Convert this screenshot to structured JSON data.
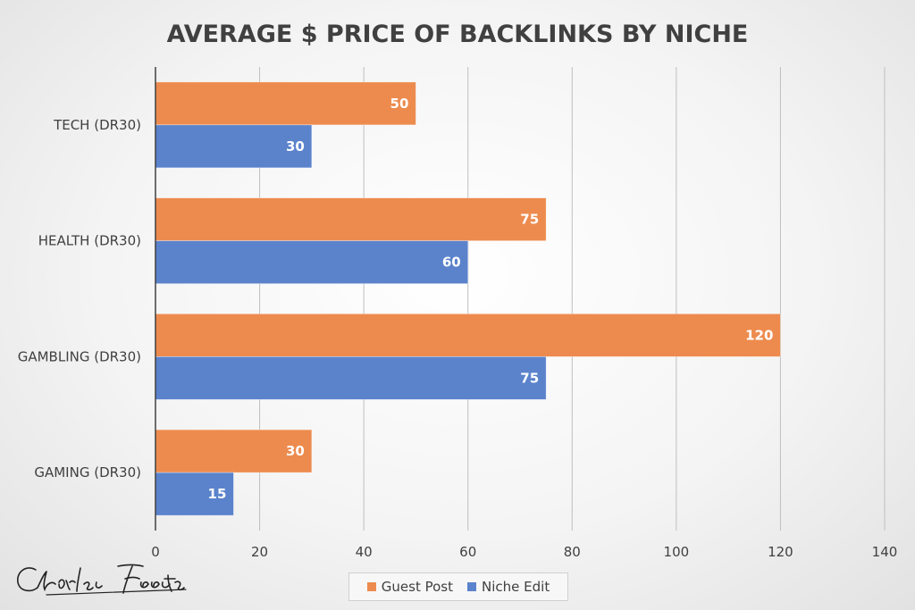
{
  "chart_data": {
    "type": "bar",
    "orientation": "horizontal",
    "title": "AVERAGE $ PRICE OF BACKLINKS BY NICHE",
    "categories": [
      "TECH (DR30)",
      "HEALTH (DR30)",
      "GAMBLING (DR30)",
      "GAMING (DR30)"
    ],
    "series": [
      {
        "name": "Guest Post",
        "color": "#ED8B4E",
        "values": [
          50,
          75,
          120,
          30
        ]
      },
      {
        "name": "Niche Edit",
        "color": "#5B83CC",
        "values": [
          30,
          60,
          75,
          15
        ]
      }
    ],
    "xlim": [
      0,
      140
    ],
    "xticks": [
      0,
      20,
      40,
      60,
      80,
      100,
      120,
      140
    ],
    "grid": "vertical",
    "legend_position": "bottom",
    "data_labels": true
  },
  "signature": {
    "text": "Charles Floate"
  }
}
